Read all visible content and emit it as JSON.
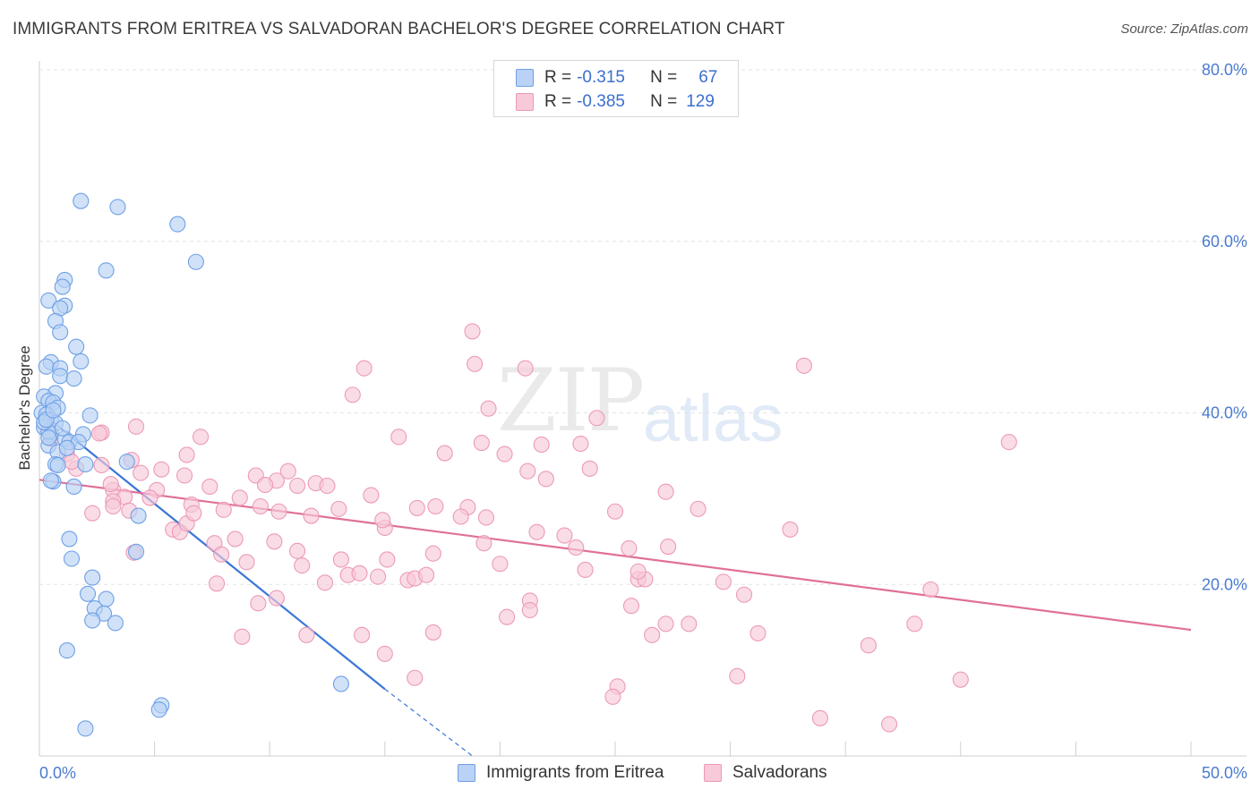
{
  "title": "IMMIGRANTS FROM ERITREA VS SALVADORAN BACHELOR'S DEGREE CORRELATION CHART",
  "source": "Source: ZipAtlas.com",
  "watermark": {
    "zip": "ZIP",
    "atlas": "atlas"
  },
  "legend": {
    "rows": [
      {
        "r_label": "R =",
        "r_value": "-0.315",
        "n_label": "N =",
        "n_value": "67",
        "color": "#6fa0e6",
        "fill": "#b9d2f5"
      },
      {
        "r_label": "R =",
        "r_value": "-0.385",
        "n_label": "N =",
        "n_value": "129",
        "color": "#ec9ab6",
        "fill": "#f8c9d8"
      }
    ]
  },
  "bottom_legend": {
    "items": [
      {
        "label": "Immigrants from Eritrea",
        "color": "#6fa0e6",
        "fill": "#b9d2f5"
      },
      {
        "label": "Salvadorans",
        "color": "#ec9ab6",
        "fill": "#f8c9d8"
      }
    ]
  },
  "chart_data": {
    "type": "scatter",
    "title": "IMMIGRANTS FROM ERITREA VS SALVADORAN BACHELOR'S DEGREE CORRELATION CHART",
    "xlabel": "",
    "ylabel": "Bachelor's Degree",
    "xlim": [
      0,
      50
    ],
    "ylim": [
      0,
      80
    ],
    "x_tick_labels": [
      "0.0%",
      "50.0%"
    ],
    "y_tick_labels": [
      "20.0%",
      "40.0%",
      "60.0%",
      "80.0%"
    ],
    "y_ticks": [
      20,
      40,
      60,
      80
    ],
    "grid": true,
    "legend_position": "top-center",
    "series": [
      {
        "name": "Immigrants from Eritrea",
        "color": "#6fa0e6",
        "fill": "#b9d2f5",
        "line_color": "#3a76d6",
        "trend": {
          "x_start": 0.0,
          "y_start": 40.2,
          "x_end": 15.0,
          "y_end": 7.8,
          "dashed_to_x": 18.8,
          "dashed_to_y": 0.0
        },
        "points": [
          [
            1.8,
            64.7
          ],
          [
            3.4,
            64.0
          ],
          [
            6.0,
            62.0
          ],
          [
            2.9,
            56.6
          ],
          [
            6.8,
            57.6
          ],
          [
            1.1,
            55.5
          ],
          [
            1.0,
            54.7
          ],
          [
            0.4,
            53.1
          ],
          [
            1.1,
            52.5
          ],
          [
            0.9,
            52.2
          ],
          [
            0.7,
            50.7
          ],
          [
            0.9,
            49.4
          ],
          [
            1.6,
            47.7
          ],
          [
            0.5,
            45.9
          ],
          [
            0.3,
            45.4
          ],
          [
            0.9,
            45.2
          ],
          [
            0.9,
            44.3
          ],
          [
            1.5,
            44.0
          ],
          [
            1.8,
            46.0
          ],
          [
            0.7,
            42.3
          ],
          [
            0.2,
            41.9
          ],
          [
            0.4,
            41.4
          ],
          [
            0.6,
            41.2
          ],
          [
            0.8,
            40.6
          ],
          [
            0.1,
            40.0
          ],
          [
            0.3,
            39.8
          ],
          [
            0.5,
            39.2
          ],
          [
            0.7,
            38.8
          ],
          [
            0.2,
            38.3
          ],
          [
            0.5,
            37.5
          ],
          [
            1.1,
            37.0
          ],
          [
            1.3,
            36.6
          ],
          [
            0.4,
            36.2
          ],
          [
            0.8,
            35.4
          ],
          [
            1.9,
            37.5
          ],
          [
            2.2,
            39.7
          ],
          [
            0.4,
            37.8
          ],
          [
            0.7,
            34.0
          ],
          [
            2.0,
            34.0
          ],
          [
            3.8,
            34.3
          ],
          [
            0.6,
            32.0
          ],
          [
            1.5,
            31.4
          ],
          [
            4.3,
            28.0
          ],
          [
            1.3,
            25.3
          ],
          [
            4.2,
            23.8
          ],
          [
            1.4,
            23.0
          ],
          [
            2.3,
            20.8
          ],
          [
            2.1,
            18.9
          ],
          [
            2.9,
            18.3
          ],
          [
            2.4,
            17.2
          ],
          [
            2.8,
            16.6
          ],
          [
            2.3,
            15.8
          ],
          [
            3.3,
            15.5
          ],
          [
            1.2,
            12.3
          ],
          [
            13.1,
            8.4
          ],
          [
            5.3,
            5.9
          ],
          [
            5.2,
            5.4
          ],
          [
            2.0,
            3.2
          ],
          [
            0.2,
            38.9
          ],
          [
            0.4,
            37.1
          ],
          [
            1.0,
            38.2
          ],
          [
            1.7,
            36.6
          ],
          [
            0.3,
            39.2
          ],
          [
            0.6,
            40.3
          ],
          [
            1.2,
            35.9
          ],
          [
            0.8,
            33.9
          ],
          [
            0.5,
            32.1
          ]
        ]
      },
      {
        "name": "Salvadorans",
        "color": "#ec9ab6",
        "fill": "#f8c9d8",
        "line_color": "#e07098",
        "trend": {
          "x_start": 0.0,
          "y_start": 32.2,
          "x_end": 50.0,
          "y_end": 14.7
        },
        "points": [
          [
            18.8,
            49.5
          ],
          [
            14.1,
            45.2
          ],
          [
            18.9,
            45.7
          ],
          [
            21.1,
            45.2
          ],
          [
            33.2,
            45.5
          ],
          [
            13.6,
            42.1
          ],
          [
            19.5,
            40.5
          ],
          [
            24.2,
            39.4
          ],
          [
            4.2,
            38.4
          ],
          [
            7.0,
            37.2
          ],
          [
            15.6,
            37.2
          ],
          [
            2.7,
            37.7
          ],
          [
            0.5,
            37.0
          ],
          [
            4.0,
            34.5
          ],
          [
            21.8,
            36.3
          ],
          [
            23.5,
            36.4
          ],
          [
            19.2,
            36.5
          ],
          [
            42.1,
            36.6
          ],
          [
            1.2,
            35.2
          ],
          [
            6.4,
            35.1
          ],
          [
            10.8,
            33.2
          ],
          [
            17.6,
            35.3
          ],
          [
            20.2,
            35.2
          ],
          [
            2.7,
            33.9
          ],
          [
            1.6,
            33.5
          ],
          [
            4.4,
            33.0
          ],
          [
            5.3,
            33.4
          ],
          [
            6.3,
            32.7
          ],
          [
            9.4,
            32.7
          ],
          [
            12.0,
            31.8
          ],
          [
            21.2,
            33.2
          ],
          [
            22.0,
            32.3
          ],
          [
            23.9,
            33.5
          ],
          [
            10.3,
            32.1
          ],
          [
            12.5,
            31.5
          ],
          [
            3.2,
            31.0
          ],
          [
            5.1,
            31.0
          ],
          [
            7.4,
            31.4
          ],
          [
            9.8,
            31.6
          ],
          [
            11.2,
            31.5
          ],
          [
            14.4,
            30.4
          ],
          [
            27.2,
            30.8
          ],
          [
            3.7,
            30.2
          ],
          [
            3.2,
            29.7
          ],
          [
            8.7,
            30.1
          ],
          [
            13.0,
            28.8
          ],
          [
            16.4,
            28.9
          ],
          [
            18.6,
            29.0
          ],
          [
            2.3,
            28.3
          ],
          [
            3.2,
            29.1
          ],
          [
            6.6,
            29.3
          ],
          [
            9.6,
            29.1
          ],
          [
            10.4,
            28.5
          ],
          [
            17.2,
            29.1
          ],
          [
            18.3,
            27.9
          ],
          [
            3.9,
            28.6
          ],
          [
            5.8,
            26.4
          ],
          [
            8.0,
            28.7
          ],
          [
            6.1,
            26.1
          ],
          [
            6.4,
            27.1
          ],
          [
            15.0,
            26.6
          ],
          [
            21.6,
            26.1
          ],
          [
            7.6,
            24.8
          ],
          [
            8.5,
            25.3
          ],
          [
            10.2,
            25.0
          ],
          [
            19.3,
            24.8
          ],
          [
            23.3,
            24.3
          ],
          [
            25.6,
            24.2
          ],
          [
            27.3,
            24.4
          ],
          [
            4.1,
            23.7
          ],
          [
            7.9,
            23.5
          ],
          [
            11.2,
            23.9
          ],
          [
            17.1,
            23.6
          ],
          [
            13.1,
            22.9
          ],
          [
            15.1,
            22.9
          ],
          [
            11.4,
            22.2
          ],
          [
            20.0,
            22.4
          ],
          [
            23.7,
            21.7
          ],
          [
            9.0,
            22.6
          ],
          [
            13.4,
            21.1
          ],
          [
            13.9,
            21.3
          ],
          [
            14.7,
            20.9
          ],
          [
            16.0,
            20.5
          ],
          [
            16.3,
            20.7
          ],
          [
            16.8,
            21.1
          ],
          [
            26.0,
            20.6
          ],
          [
            26.3,
            20.6
          ],
          [
            26.0,
            21.5
          ],
          [
            12.4,
            20.2
          ],
          [
            7.7,
            20.1
          ],
          [
            29.7,
            20.3
          ],
          [
            21.3,
            18.1
          ],
          [
            30.6,
            18.8
          ],
          [
            38.7,
            19.4
          ],
          [
            10.3,
            18.4
          ],
          [
            9.5,
            17.8
          ],
          [
            21.3,
            17.0
          ],
          [
            25.7,
            17.5
          ],
          [
            20.3,
            16.2
          ],
          [
            27.2,
            15.4
          ],
          [
            28.2,
            15.4
          ],
          [
            31.2,
            14.3
          ],
          [
            38.0,
            15.4
          ],
          [
            11.6,
            14.1
          ],
          [
            14.0,
            14.1
          ],
          [
            17.1,
            14.4
          ],
          [
            26.6,
            14.1
          ],
          [
            8.8,
            13.9
          ],
          [
            36.0,
            12.9
          ],
          [
            15.0,
            11.9
          ],
          [
            16.3,
            9.1
          ],
          [
            30.3,
            9.3
          ],
          [
            40.0,
            8.9
          ],
          [
            25.1,
            8.1
          ],
          [
            24.9,
            6.9
          ],
          [
            33.9,
            4.4
          ],
          [
            36.9,
            3.7
          ],
          [
            2.6,
            37.6
          ],
          [
            1.4,
            34.3
          ],
          [
            3.1,
            31.7
          ],
          [
            4.8,
            30.1
          ],
          [
            6.7,
            28.3
          ],
          [
            11.8,
            28.0
          ],
          [
            14.9,
            27.5
          ],
          [
            19.4,
            27.8
          ],
          [
            25.0,
            28.5
          ],
          [
            28.6,
            28.8
          ],
          [
            32.6,
            26.4
          ],
          [
            22.8,
            25.7
          ]
        ]
      }
    ]
  }
}
